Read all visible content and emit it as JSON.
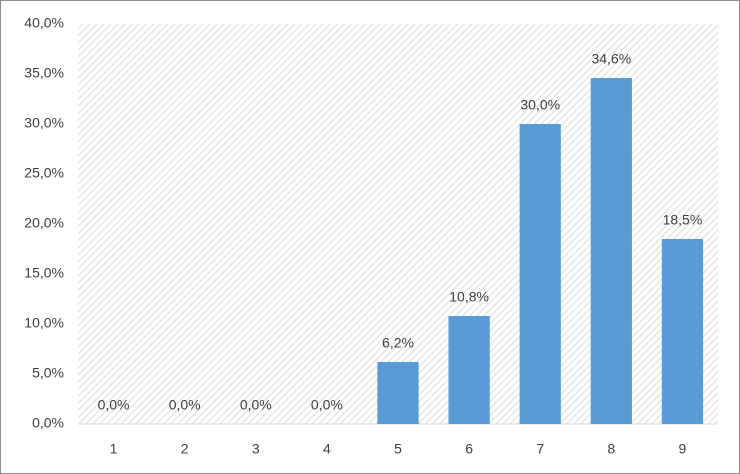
{
  "chart_data": {
    "type": "bar",
    "categories": [
      "1",
      "2",
      "3",
      "4",
      "5",
      "6",
      "7",
      "8",
      "9"
    ],
    "values": [
      0,
      0,
      0,
      0,
      6.2,
      10.8,
      30.0,
      34.6,
      18.5
    ],
    "value_labels": [
      "0,0%",
      "0,0%",
      "0,0%",
      "0,0%",
      "6,2%",
      "10,8%",
      "30,0%",
      "34,6%",
      "18,5%"
    ],
    "color": "#5b9bd5",
    "ylim": [
      0,
      40
    ],
    "yticks": [
      {
        "value": 0,
        "label": "0,0%"
      },
      {
        "value": 5,
        "label": "5,0%"
      },
      {
        "value": 10,
        "label": "10,0%"
      },
      {
        "value": 15,
        "label": "15,0%"
      },
      {
        "value": 20,
        "label": "20,0%"
      },
      {
        "value": 25,
        "label": "25,0%"
      },
      {
        "value": 30,
        "label": "30,0%"
      },
      {
        "value": 35,
        "label": "35,0%"
      },
      {
        "value": 40,
        "label": "40,0%"
      }
    ],
    "grid": false
  }
}
